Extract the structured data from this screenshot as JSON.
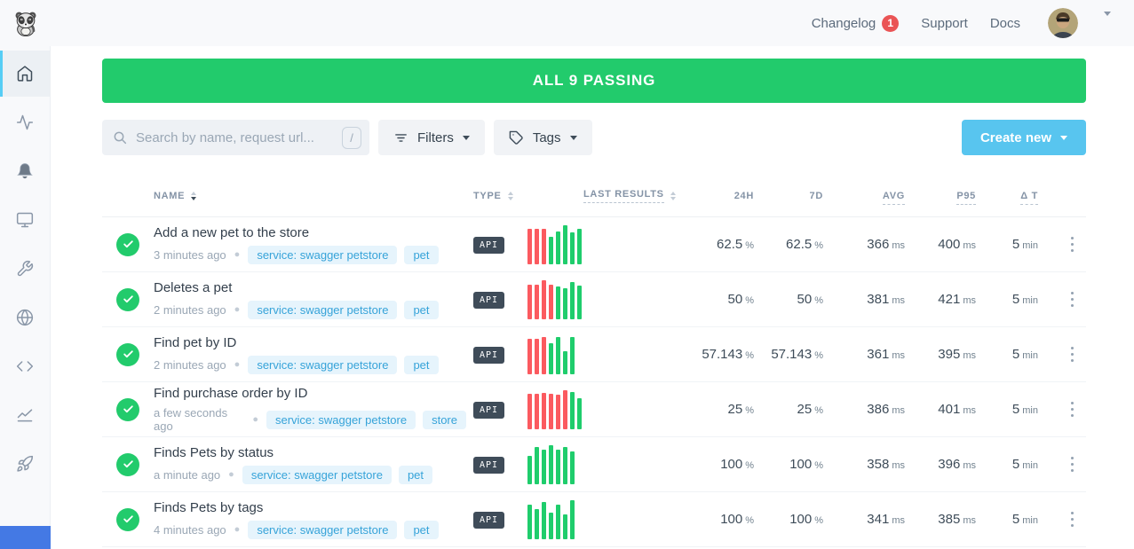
{
  "topbar": {
    "changelog_label": "Changelog",
    "changelog_badge": "1",
    "support_label": "Support",
    "docs_label": "Docs"
  },
  "banner": {
    "text": "ALL 9 PASSING"
  },
  "toolbar": {
    "search_placeholder": "Search by name, request url...",
    "search_shortcut": "/",
    "filters_label": "Filters",
    "tags_label": "Tags",
    "create_new_label": "Create new"
  },
  "sidebar": {
    "items": [
      {
        "name": "home",
        "icon": "home-icon",
        "active": true
      },
      {
        "name": "activity",
        "icon": "activity-icon",
        "active": false
      },
      {
        "name": "alerts",
        "icon": "bell-icon",
        "active": false
      },
      {
        "name": "dashboards",
        "icon": "monitor-icon",
        "active": false
      },
      {
        "name": "maintenance",
        "icon": "wrench-icon",
        "active": false
      },
      {
        "name": "private-locations",
        "icon": "globe-icon",
        "active": false
      },
      {
        "name": "snippets",
        "icon": "code-icon",
        "active": false
      },
      {
        "name": "analytics",
        "icon": "chart-icon",
        "active": false
      },
      {
        "name": "quickstart",
        "icon": "rocket-icon",
        "active": false
      }
    ]
  },
  "table": {
    "columns": [
      {
        "label": "NAME",
        "sortable": true,
        "sort_active": true,
        "dashed": false
      },
      {
        "label": "TYPE",
        "sortable": true,
        "sort_active": false,
        "dashed": false
      },
      {
        "label": "LAST RESULTS",
        "sortable": true,
        "sort_active": false,
        "dashed": true
      },
      {
        "label": "24H",
        "sortable": false,
        "dashed": false
      },
      {
        "label": "7D",
        "sortable": false,
        "dashed": false
      },
      {
        "label": "AVG",
        "sortable": false,
        "dashed": true
      },
      {
        "label": "P95",
        "sortable": false,
        "dashed": true
      },
      {
        "label": "Δ T",
        "sortable": false,
        "dashed": true
      }
    ],
    "units": {
      "percent": "%",
      "milliseconds": "ms",
      "minutes": "min"
    },
    "rows": [
      {
        "name": "Add a new pet to the store",
        "time": "3 minutes ago",
        "tags": [
          "service: swagger petstore",
          "pet"
        ],
        "type": "API",
        "results": [
          {
            "s": "fail",
            "h": 0.92
          },
          {
            "s": "fail",
            "h": 0.92
          },
          {
            "s": "fail",
            "h": 0.92
          },
          {
            "s": "pass",
            "h": 0.7
          },
          {
            "s": "pass",
            "h": 0.84
          },
          {
            "s": "pass",
            "h": 1.0
          },
          {
            "s": "pass",
            "h": 0.82
          },
          {
            "s": "pass",
            "h": 0.92
          }
        ],
        "metrics": {
          "h24": "62.5",
          "d7": "62.5",
          "avg": "366",
          "p95": "400",
          "dt": "5"
        }
      },
      {
        "name": "Deletes a pet",
        "time": "2 minutes ago",
        "tags": [
          "service: swagger petstore",
          "pet"
        ],
        "type": "API",
        "results": [
          {
            "s": "fail",
            "h": 0.88
          },
          {
            "s": "fail",
            "h": 0.88
          },
          {
            "s": "fail",
            "h": 1.0
          },
          {
            "s": "fail",
            "h": 0.88
          },
          {
            "s": "pass",
            "h": 0.84
          },
          {
            "s": "pass",
            "h": 0.8
          },
          {
            "s": "pass",
            "h": 0.95
          },
          {
            "s": "pass",
            "h": 0.86
          }
        ],
        "metrics": {
          "h24": "50",
          "d7": "50",
          "avg": "381",
          "p95": "421",
          "dt": "5"
        }
      },
      {
        "name": "Find pet by ID",
        "time": "2 minutes ago",
        "tags": [
          "service: swagger petstore",
          "pet"
        ],
        "type": "API",
        "results": [
          {
            "s": "fail",
            "h": 0.9
          },
          {
            "s": "fail",
            "h": 0.9
          },
          {
            "s": "fail",
            "h": 0.95
          },
          {
            "s": "pass",
            "h": 0.8
          },
          {
            "s": "pass",
            "h": 0.95
          },
          {
            "s": "pass",
            "h": 0.6
          },
          {
            "s": "pass",
            "h": 0.95
          }
        ],
        "metrics": {
          "h24": "57.143",
          "d7": "57.143",
          "avg": "361",
          "p95": "395",
          "dt": "5"
        }
      },
      {
        "name": "Find purchase order by ID",
        "time": "a few seconds ago",
        "tags": [
          "service: swagger petstore",
          "store"
        ],
        "type": "API",
        "results": [
          {
            "s": "fail",
            "h": 0.9
          },
          {
            "s": "fail",
            "h": 0.9
          },
          {
            "s": "fail",
            "h": 0.93
          },
          {
            "s": "fail",
            "h": 0.9
          },
          {
            "s": "fail",
            "h": 0.88
          },
          {
            "s": "fail",
            "h": 1.0
          },
          {
            "s": "pass",
            "h": 0.95
          },
          {
            "s": "pass",
            "h": 0.8
          }
        ],
        "metrics": {
          "h24": "25",
          "d7": "25",
          "avg": "386",
          "p95": "401",
          "dt": "5"
        }
      },
      {
        "name": "Finds Pets by status",
        "time": "a minute ago",
        "tags": [
          "service: swagger petstore",
          "pet"
        ],
        "type": "API",
        "results": [
          {
            "s": "pass",
            "h": 0.72
          },
          {
            "s": "pass",
            "h": 0.95
          },
          {
            "s": "pass",
            "h": 0.88
          },
          {
            "s": "pass",
            "h": 1.0
          },
          {
            "s": "pass",
            "h": 0.88
          },
          {
            "s": "pass",
            "h": 0.95
          },
          {
            "s": "pass",
            "h": 0.85
          }
        ],
        "metrics": {
          "h24": "100",
          "d7": "100",
          "avg": "358",
          "p95": "396",
          "dt": "5"
        }
      },
      {
        "name": "Finds Pets by tags",
        "time": "4 minutes ago",
        "tags": [
          "service: swagger petstore",
          "pet"
        ],
        "type": "API",
        "results": [
          {
            "s": "pass",
            "h": 0.88
          },
          {
            "s": "pass",
            "h": 0.78
          },
          {
            "s": "pass",
            "h": 0.95
          },
          {
            "s": "pass",
            "h": 0.68
          },
          {
            "s": "pass",
            "h": 0.88
          },
          {
            "s": "pass",
            "h": 0.64
          },
          {
            "s": "pass",
            "h": 1.0
          }
        ],
        "metrics": {
          "h24": "100",
          "d7": "100",
          "avg": "341",
          "p95": "385",
          "dt": "5"
        }
      }
    ]
  },
  "colors": {
    "success_green": "#22cb6c",
    "fail_red": "#fb5a5f",
    "primary_blue": "#58c5ef",
    "sidebar_accent_cyan": "#56cdf5",
    "tag_text_blue": "#36a3d9",
    "tag_bg_blue": "#e6f4fc",
    "badge_red": "#ea5455",
    "api_badge_bg": "#3f4c59"
  }
}
